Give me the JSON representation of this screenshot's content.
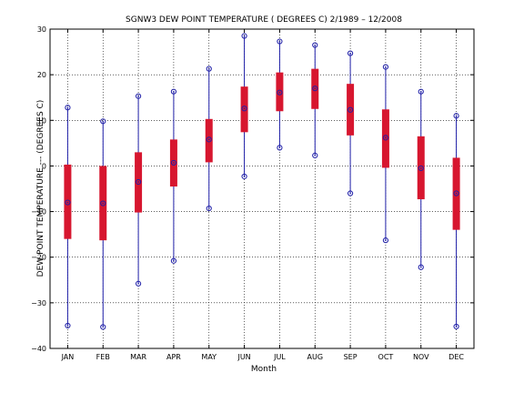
{
  "chart_data": {
    "type": "boxplot",
    "title": "SGNW3  DEW POINT TEMPERATURE ( DEGREES C) 2/1989 – 12/2008",
    "xlabel": "Month",
    "ylabel": "DEW POINT TEMPERATURE --- (DEGREES C)",
    "ylim": [
      -40,
      30
    ],
    "yticks": [
      30,
      20,
      10,
      0,
      -10,
      -20,
      -30,
      -40
    ],
    "ytick_labels": [
      "30",
      "20",
      "10",
      "0",
      "−10",
      "−20",
      "−30",
      "−40"
    ],
    "grid": true,
    "categories": [
      "JAN",
      "FEB",
      "MAR",
      "APR",
      "MAY",
      "JUN",
      "JUL",
      "AUG",
      "SEP",
      "OCT",
      "NOV",
      "DEC"
    ],
    "max": [
      12.8,
      9.8,
      15.3,
      16.3,
      21.3,
      28.5,
      27.3,
      26.5,
      24.7,
      21.7,
      16.3,
      11.0
    ],
    "q3": [
      0.3,
      0.0,
      3.0,
      5.8,
      10.3,
      17.4,
      20.5,
      21.3,
      18.0,
      12.4,
      6.5,
      1.8
    ],
    "median": [
      -8.0,
      -8.2,
      -3.5,
      0.7,
      5.8,
      12.6,
      16.1,
      17.0,
      12.3,
      6.2,
      -0.5,
      -6.0
    ],
    "q1": [
      -16.0,
      -16.3,
      -10.2,
      -4.5,
      0.8,
      7.4,
      12.0,
      12.5,
      6.7,
      -0.4,
      -7.3,
      -14.0
    ],
    "min": [
      -35.0,
      -35.3,
      -25.8,
      -20.8,
      -9.3,
      -2.3,
      4.0,
      2.3,
      -6.0,
      -16.3,
      -22.2,
      -35.2
    ],
    "colors": {
      "box": "#d7162f",
      "whisker": "#1f1fa8",
      "marker": "#1f1fa8",
      "grid": "#000000"
    }
  }
}
